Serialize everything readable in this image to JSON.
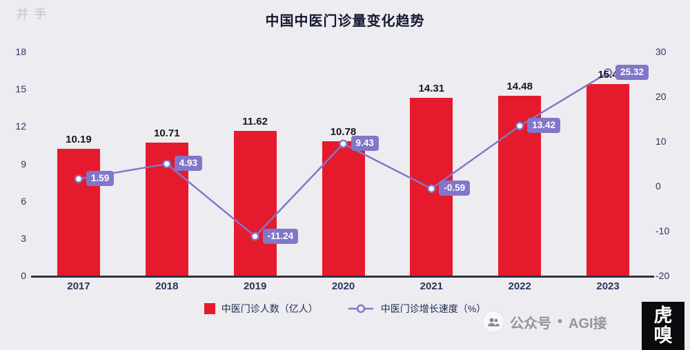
{
  "page": {
    "watermark_fragment": "并手",
    "footer_watermark": {
      "channel_label": "公众号",
      "separator": "•",
      "account": "AGI接"
    },
    "logo": {
      "line1": "虎",
      "line2": "嗅"
    }
  },
  "colors": {
    "background": "#edecf1",
    "bar": "#e51a2c",
    "line": "#8177c9",
    "axis_text": "#26365c",
    "title_text": "#14182f",
    "bar_label_text": "#17171c",
    "baseline": "#33323c"
  },
  "chart_data": {
    "type": "bar",
    "subtype": "bar+line combo, dual axis",
    "title": "中国中医门诊量变化趋势",
    "categories": [
      "2017",
      "2018",
      "2019",
      "2020",
      "2021",
      "2022",
      "2023"
    ],
    "series": [
      {
        "name": "中医门诊人数（亿人）",
        "type": "bar",
        "axis": "left",
        "values": [
          10.19,
          10.71,
          11.62,
          10.78,
          14.31,
          14.48,
          15.4
        ],
        "color": "#e51a2c"
      },
      {
        "name": "中医门诊增长速度（%）",
        "type": "line",
        "axis": "right",
        "values": [
          1.59,
          4.93,
          -11.24,
          9.43,
          -0.59,
          13.42,
          25.32
        ],
        "color": "#8177c9"
      }
    ],
    "left_axis": {
      "min": 0,
      "max": 18,
      "ticks": [
        0,
        3,
        6,
        9,
        12,
        15,
        18
      ]
    },
    "right_axis": {
      "min": -20,
      "max": 30,
      "ticks": [
        -20,
        -10,
        0,
        10,
        20,
        30
      ]
    },
    "grid": false,
    "legend_position": "bottom"
  }
}
